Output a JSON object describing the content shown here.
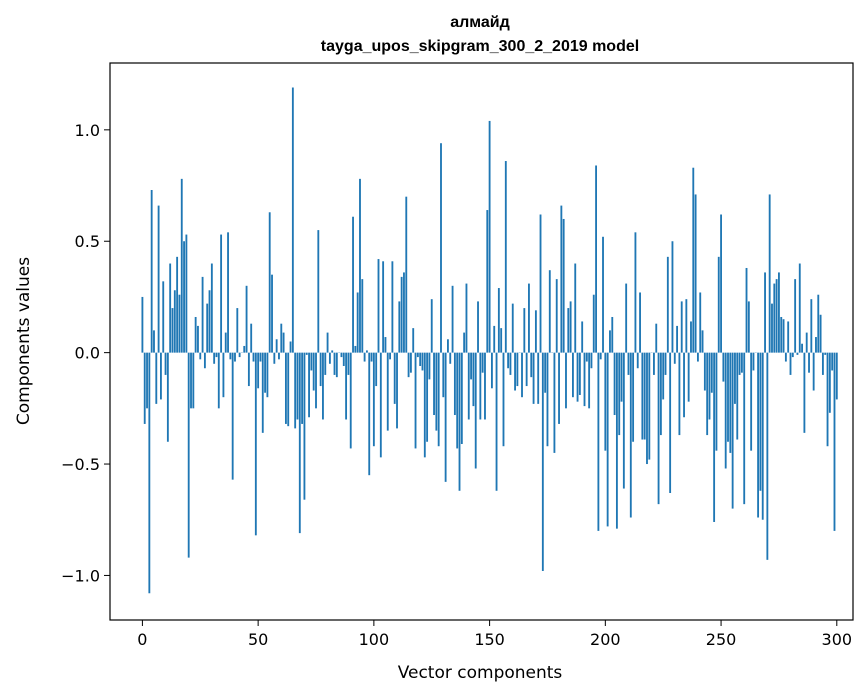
{
  "chart_data": {
    "type": "bar",
    "title": "алмайд",
    "subtitle": "tayga_upos_skipgram_300_2_2019 model",
    "xlabel": "Vector components",
    "ylabel": "Components values",
    "xlim": [
      -14,
      307
    ],
    "ylim": [
      -1.2,
      1.3
    ],
    "xticks": [
      0,
      50,
      100,
      150,
      200,
      250,
      300
    ],
    "xtick_labels": [
      "0",
      "50",
      "100",
      "150",
      "200",
      "250",
      "300"
    ],
    "yticks": [
      -1.0,
      -0.5,
      0.0,
      0.5,
      1.0
    ],
    "ytick_labels": [
      "−1.0",
      "−0.5",
      "0.0",
      "0.5",
      "1.0"
    ],
    "bar_color": "#1f77b4",
    "grid": false,
    "values": [
      0.25,
      -0.32,
      -0.25,
      -1.08,
      0.73,
      0.1,
      -0.23,
      0.66,
      -0.21,
      0.32,
      -0.1,
      -0.4,
      0.4,
      0.2,
      0.28,
      0.43,
      0.26,
      0.78,
      0.5,
      0.53,
      -0.92,
      -0.25,
      -0.25,
      0.16,
      0.12,
      -0.03,
      0.34,
      -0.07,
      0.22,
      0.28,
      0.4,
      -0.05,
      -0.02,
      -0.25,
      0.53,
      -0.2,
      0.09,
      0.54,
      -0.03,
      -0.57,
      -0.04,
      0.2,
      -0.02,
      0.0,
      0.03,
      0.3,
      -0.15,
      0.13,
      -0.04,
      -0.82,
      -0.16,
      -0.04,
      -0.36,
      -0.18,
      -0.2,
      0.63,
      0.35,
      -0.05,
      0.06,
      -0.03,
      0.13,
      0.09,
      -0.32,
      -0.33,
      0.05,
      1.19,
      -0.34,
      -0.3,
      -0.81,
      -0.32,
      -0.66,
      -0.01,
      -0.29,
      -0.08,
      -0.17,
      -0.25,
      0.55,
      -0.15,
      -0.3,
      -0.1,
      0.09,
      -0.05,
      0.01,
      -0.1,
      -0.11,
      0.0,
      -0.02,
      -0.06,
      -0.3,
      -0.1,
      -0.43,
      0.61,
      0.03,
      0.27,
      0.78,
      0.33,
      -0.04,
      0.01,
      -0.55,
      -0.04,
      -0.42,
      -0.15,
      0.42,
      -0.47,
      0.41,
      0.07,
      -0.35,
      -0.03,
      0.41,
      -0.23,
      -0.34,
      0.23,
      0.34,
      0.36,
      0.7,
      -0.11,
      -0.09,
      0.11,
      -0.43,
      -0.02,
      -0.06,
      -0.08,
      -0.47,
      -0.4,
      -0.12,
      0.24,
      -0.28,
      -0.35,
      -0.42,
      0.94,
      -0.2,
      -0.58,
      0.06,
      -0.05,
      0.3,
      -0.28,
      -0.43,
      -0.62,
      -0.41,
      0.09,
      0.31,
      -0.3,
      -0.12,
      -0.24,
      -0.52,
      0.23,
      -0.3,
      -0.09,
      -0.3,
      0.64,
      1.04,
      -0.16,
      0.12,
      -0.62,
      0.29,
      0.11,
      -0.42,
      0.86,
      -0.07,
      -0.1,
      0.22,
      -0.17,
      -0.15,
      0.0,
      -0.2,
      0.2,
      -0.15,
      0.31,
      -0.11,
      -0.23,
      0.19,
      -0.23,
      0.62,
      -0.98,
      -0.18,
      -0.42,
      0.37,
      0.0,
      -0.45,
      0.33,
      -0.32,
      0.66,
      0.6,
      -0.25,
      0.2,
      0.23,
      -0.2,
      0.4,
      -0.22,
      -0.19,
      0.14,
      -0.24,
      -0.04,
      -0.25,
      -0.07,
      0.26,
      0.84,
      -0.8,
      -0.03,
      0.52,
      -0.44,
      -0.78,
      0.1,
      0.16,
      -0.28,
      -0.79,
      -0.37,
      -0.22,
      -0.61,
      0.31,
      -0.1,
      -0.74,
      -0.4,
      0.54,
      -0.07,
      0.27,
      -0.39,
      -0.39,
      -0.5,
      -0.48,
      0.0,
      -0.1,
      0.13,
      -0.68,
      -0.37,
      -0.21,
      -0.1,
      0.43,
      -0.63,
      0.5,
      -0.05,
      0.12,
      -0.37,
      0.23,
      -0.29,
      0.24,
      -0.22,
      0.14,
      0.83,
      0.71,
      -0.04,
      0.27,
      0.1,
      -0.17,
      -0.37,
      -0.3,
      -0.18,
      -0.76,
      -0.44,
      0.43,
      0.62,
      -0.13,
      -0.52,
      -0.4,
      -0.45,
      -0.7,
      -0.23,
      -0.39,
      -0.1,
      -0.09,
      -0.68,
      0.38,
      0.23,
      -0.44,
      -0.08,
      0.0,
      -0.74,
      -0.62,
      -0.75,
      0.36,
      -0.93,
      0.71,
      0.22,
      0.31,
      0.33,
      0.36,
      0.16,
      0.15,
      -0.04,
      0.14,
      -0.1,
      -0.02,
      0.33,
      -0.01,
      0.4,
      0.04,
      -0.36,
      0.09,
      -0.09,
      0.24,
      -0.17,
      0.07,
      0.26,
      0.17,
      -0.1,
      -0.01,
      -0.42,
      -0.27,
      -0.08,
      -0.8,
      -0.21
    ]
  }
}
